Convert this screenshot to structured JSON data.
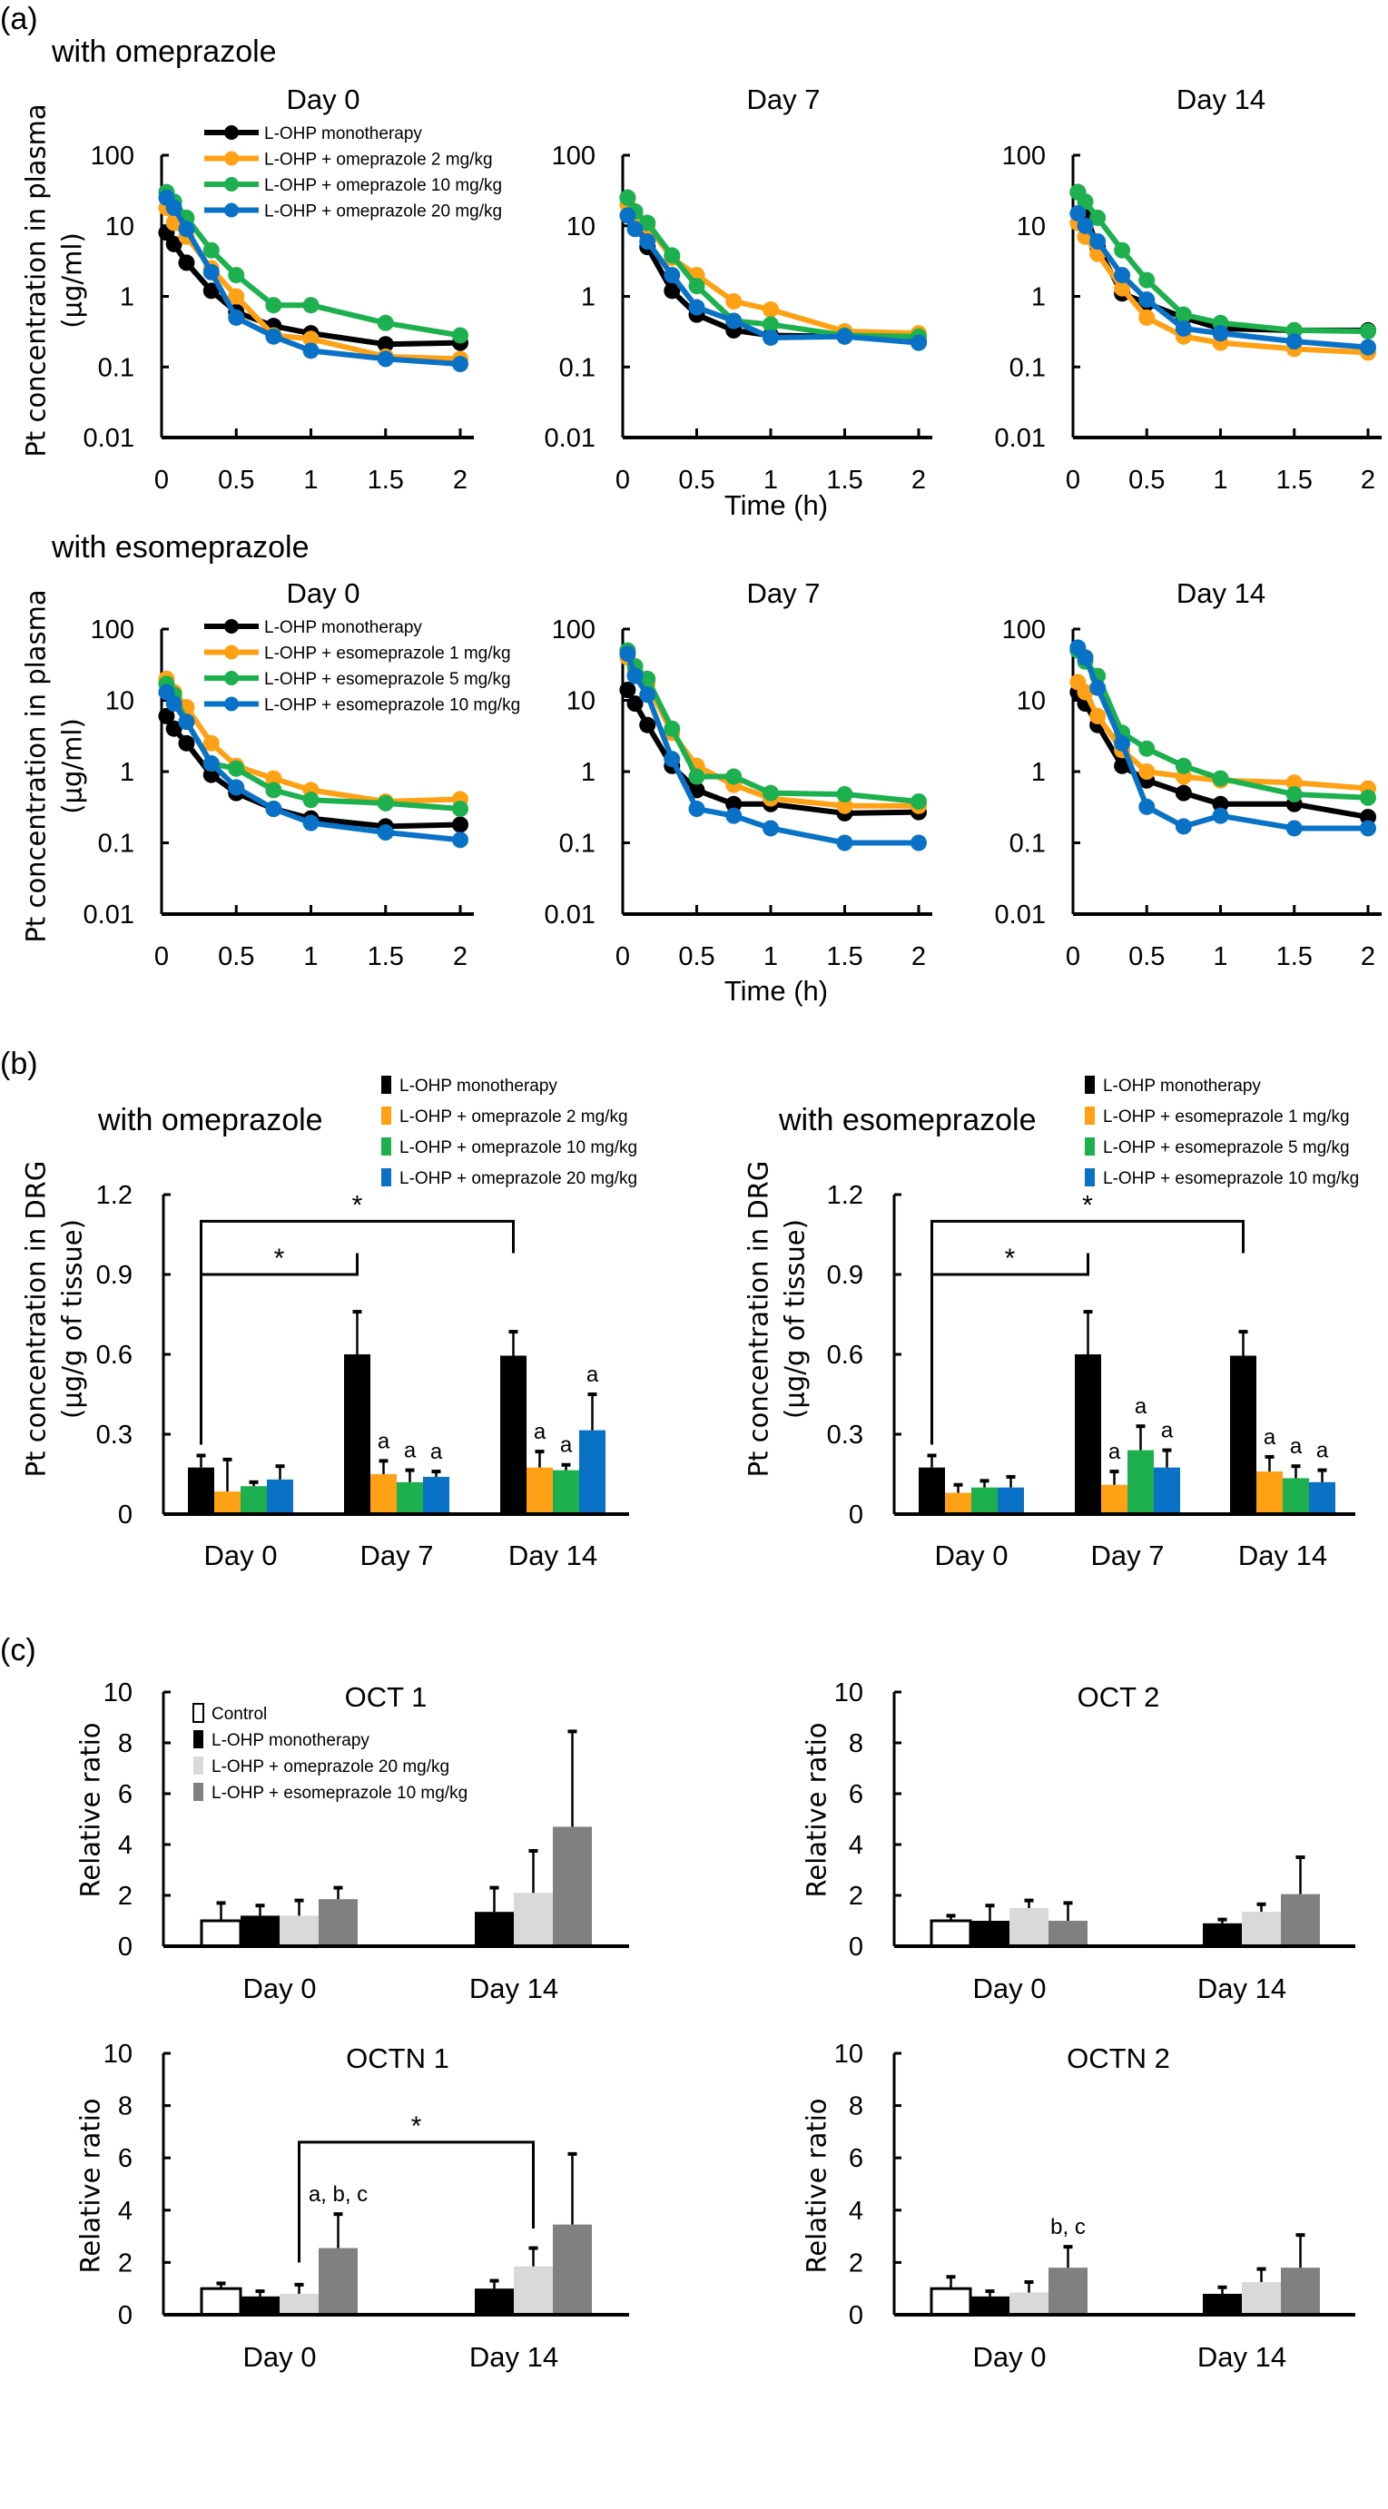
{
  "panel_labels": {
    "a": "(a)",
    "b": "(b)",
    "c": "(c)"
  },
  "sections": {
    "a_top": "with omeprazole",
    "a_bottom": "with esomeprazole",
    "b_left": "with omeprazole",
    "b_right": "with esomeprazole"
  },
  "chart_data": [
    {
      "type": "line",
      "title": "Day 0",
      "yscale": "log",
      "ylim": [
        0.01,
        100
      ],
      "xlim": [
        0,
        2
      ],
      "yticks": [
        "0.01",
        "0.1",
        "1",
        "10",
        "100"
      ],
      "xticks": [
        "0",
        "0.5",
        "1",
        "1.5",
        "2"
      ],
      "ylabel": [
        "Pt concentration in plasma",
        "(μg/ml)"
      ],
      "xlabel": "",
      "legend": "top-right",
      "grid": false,
      "x": [
        0.033,
        0.083,
        0.167,
        0.333,
        0.5,
        0.75,
        1,
        1.5,
        2
      ],
      "series": [
        {
          "name": "L-OHP monotherapy",
          "color": "#000000",
          "values": [
            8,
            5.5,
            3,
            1.2,
            0.6,
            0.38,
            0.3,
            0.21,
            0.22
          ]
        },
        {
          "name": "L-OHP + omeprazole 2 mg/kg",
          "color": "#FFA114",
          "values": [
            18,
            11,
            7,
            2.5,
            1.0,
            0.28,
            0.25,
            0.14,
            0.13
          ]
        },
        {
          "name": "L-OHP + omeprazole 10 mg/kg",
          "color": "#1DB04E",
          "values": [
            30,
            22,
            13,
            4.5,
            2.0,
            0.75,
            0.75,
            0.42,
            0.28
          ]
        },
        {
          "name": "L-OHP + omeprazole 20 mg/kg",
          "color": "#0A72C6",
          "values": [
            25,
            18,
            9,
            2.2,
            0.5,
            0.27,
            0.17,
            0.13,
            0.11
          ]
        }
      ]
    },
    {
      "type": "line",
      "title": "Day 7",
      "yscale": "log",
      "ylim": [
        0.01,
        100
      ],
      "xlim": [
        0,
        2
      ],
      "yticks": [
        "0.01",
        "0.1",
        "1",
        "10",
        "100"
      ],
      "xticks": [
        "0",
        "0.5",
        "1",
        "1.5",
        "2"
      ],
      "xlabel": "Time (h)",
      "grid": false,
      "x": [
        0.033,
        0.083,
        0.167,
        0.333,
        0.5,
        0.75,
        1,
        1.5,
        2
      ],
      "series": [
        {
          "color": "#000000",
          "values": [
            25,
            12,
            5,
            1.2,
            0.55,
            0.33,
            0.28,
            0.27,
            0.23
          ]
        },
        {
          "color": "#FFA114",
          "values": [
            20,
            14,
            10,
            3.5,
            2.0,
            0.85,
            0.65,
            0.32,
            0.3
          ]
        },
        {
          "color": "#1DB04E",
          "values": [
            25,
            16,
            11,
            3.8,
            1.4,
            0.45,
            0.4,
            0.28,
            0.27
          ]
        },
        {
          "color": "#0A72C6",
          "values": [
            14,
            9,
            6,
            2.0,
            0.7,
            0.45,
            0.26,
            0.27,
            0.22
          ]
        }
      ]
    },
    {
      "type": "line",
      "title": "Day 14",
      "yscale": "log",
      "ylim": [
        0.01,
        100
      ],
      "xlim": [
        0,
        2
      ],
      "yticks": [
        "0.01",
        "0.1",
        "1",
        "10",
        "100"
      ],
      "xticks": [
        "0",
        "0.5",
        "1",
        "1.5",
        "2"
      ],
      "grid": false,
      "x": [
        0.033,
        0.083,
        0.167,
        0.333,
        0.5,
        0.75,
        1,
        1.5,
        2
      ],
      "series": [
        {
          "color": "#000000",
          "values": [
            30,
            15,
            5,
            1.1,
            0.8,
            0.5,
            0.35,
            0.33,
            0.33
          ]
        },
        {
          "color": "#FFA114",
          "values": [
            11,
            7,
            4,
            1.3,
            0.5,
            0.27,
            0.22,
            0.18,
            0.16
          ]
        },
        {
          "color": "#1DB04E",
          "values": [
            30,
            22,
            13,
            4.5,
            1.7,
            0.55,
            0.42,
            0.33,
            0.32
          ]
        },
        {
          "color": "#0A72C6",
          "values": [
            15,
            10,
            6,
            2.0,
            0.9,
            0.35,
            0.3,
            0.23,
            0.19
          ]
        }
      ]
    },
    {
      "type": "line",
      "title": "Day 0",
      "yscale": "log",
      "ylim": [
        0.01,
        100
      ],
      "xlim": [
        0,
        2
      ],
      "yticks": [
        "0.01",
        "0.1",
        "1",
        "10",
        "100"
      ],
      "xticks": [
        "0",
        "0.5",
        "1",
        "1.5",
        "2"
      ],
      "ylabel": [
        "Pt concentration in plasma",
        "(μg/ml)"
      ],
      "legend": "top-right",
      "grid": false,
      "x": [
        0.033,
        0.083,
        0.167,
        0.333,
        0.5,
        0.75,
        1,
        1.5,
        2
      ],
      "series": [
        {
          "name": "L-OHP monotherapy",
          "color": "#000000",
          "values": [
            6,
            4,
            2.5,
            0.9,
            0.5,
            0.3,
            0.22,
            0.17,
            0.18
          ]
        },
        {
          "name": "L-OHP + esomeprazole 1 mg/kg",
          "color": "#FFA114",
          "values": [
            20,
            13,
            8,
            2.5,
            1.2,
            0.8,
            0.55,
            0.38,
            0.41
          ]
        },
        {
          "name": "L-OHP + esomeprazole 5 mg/kg",
          "color": "#1DB04E",
          "values": [
            17,
            12,
            5,
            1.3,
            1.1,
            0.55,
            0.4,
            0.36,
            0.3
          ]
        },
        {
          "name": "L-OHP + esomeprazole 10 mg/kg",
          "color": "#0A72C6",
          "values": [
            13,
            9,
            5,
            1.3,
            0.6,
            0.3,
            0.19,
            0.14,
            0.11
          ]
        }
      ]
    },
    {
      "type": "line",
      "title": "Day 7",
      "yscale": "log",
      "ylim": [
        0.01,
        100
      ],
      "xlim": [
        0,
        2
      ],
      "yticks": [
        "0.01",
        "0.1",
        "1",
        "10",
        "100"
      ],
      "xticks": [
        "0",
        "0.5",
        "1",
        "1.5",
        "2"
      ],
      "xlabel": "Time (h)",
      "grid": false,
      "x": [
        0.033,
        0.083,
        0.167,
        0.333,
        0.5,
        0.75,
        1,
        1.5,
        2
      ],
      "series": [
        {
          "color": "#000000",
          "values": [
            14,
            9,
            4.5,
            1.2,
            0.55,
            0.35,
            0.35,
            0.26,
            0.27
          ]
        },
        {
          "color": "#FFA114",
          "values": [
            40,
            25,
            17,
            3.5,
            1.2,
            0.65,
            0.42,
            0.33,
            0.33
          ]
        },
        {
          "color": "#1DB04E",
          "values": [
            50,
            30,
            20,
            4,
            0.85,
            0.85,
            0.5,
            0.48,
            0.38
          ]
        },
        {
          "color": "#0A72C6",
          "values": [
            45,
            22,
            12,
            1.5,
            0.3,
            0.24,
            0.16,
            0.1,
            0.1
          ]
        }
      ]
    },
    {
      "type": "line",
      "title": "Day 14",
      "yscale": "log",
      "ylim": [
        0.01,
        100
      ],
      "xlim": [
        0,
        2
      ],
      "yticks": [
        "0.01",
        "0.1",
        "1",
        "10",
        "100"
      ],
      "xticks": [
        "0",
        "0.5",
        "1",
        "1.5",
        "2"
      ],
      "grid": false,
      "x": [
        0.033,
        0.083,
        0.167,
        0.333,
        0.5,
        0.75,
        1,
        1.5,
        2
      ],
      "series": [
        {
          "color": "#000000",
          "values": [
            13,
            9,
            4.5,
            1.2,
            0.75,
            0.5,
            0.35,
            0.35,
            0.23
          ]
        },
        {
          "color": "#FFA114",
          "values": [
            18,
            13,
            6,
            2,
            1.0,
            0.85,
            0.75,
            0.7,
            0.58
          ]
        },
        {
          "color": "#1DB04E",
          "values": [
            50,
            35,
            22,
            3.5,
            2.1,
            1.2,
            0.8,
            0.48,
            0.43
          ]
        },
        {
          "color": "#0A72C6",
          "values": [
            55,
            40,
            15,
            2.5,
            0.32,
            0.17,
            0.24,
            0.16,
            0.16
          ]
        }
      ]
    },
    {
      "type": "bar",
      "ylim": [
        0,
        1.2
      ],
      "yticks": [
        "0",
        "0.3",
        "0.6",
        "0.9",
        "1.2"
      ],
      "ylabel": [
        "Pt concentration in DRG",
        "(μg/g of tissue)"
      ],
      "legend": "top-right",
      "grid": false,
      "categories": [
        "Day 0",
        "Day 7",
        "Day 14"
      ],
      "series": [
        {
          "name": "L-OHP monotherapy",
          "color": "#000000",
          "values": [
            0.175,
            0.6,
            0.595
          ],
          "errors": [
            0.045,
            0.16,
            0.09
          ],
          "annotations": [
            "",
            "",
            ""
          ]
        },
        {
          "name": "L-OHP + omeprazole 2 mg/kg",
          "color": "#FFA114",
          "values": [
            0.085,
            0.15,
            0.175
          ],
          "errors": [
            0.12,
            0.05,
            0.06
          ],
          "annotations": [
            "",
            "a",
            "a"
          ]
        },
        {
          "name": "L-OHP + omeprazole 10 mg/kg",
          "color": "#1DB04E",
          "values": [
            0.105,
            0.12,
            0.165
          ],
          "errors": [
            0.015,
            0.045,
            0.02
          ],
          "annotations": [
            "",
            "a",
            "a"
          ]
        },
        {
          "name": "L-OHP + omeprazole 20 mg/kg",
          "color": "#0A72C6",
          "values": [
            0.13,
            0.14,
            0.315
          ],
          "errors": [
            0.05,
            0.02,
            0.135
          ],
          "annotations": [
            "",
            "a",
            "a"
          ]
        }
      ],
      "significance": [
        {
          "from": "Day 0",
          "to": "Day 7",
          "label": "*"
        },
        {
          "from": "Day 0",
          "to": "Day 14",
          "label": "*"
        }
      ]
    },
    {
      "type": "bar",
      "ylim": [
        0,
        1.2
      ],
      "yticks": [
        "0",
        "0.3",
        "0.6",
        "0.9",
        "1.2"
      ],
      "ylabel": [
        "Pt concentration in DRG",
        "(μg/g of tissue)"
      ],
      "legend": "top-right",
      "grid": false,
      "categories": [
        "Day 0",
        "Day 7",
        "Day 14"
      ],
      "series": [
        {
          "name": "L-OHP monotherapy",
          "color": "#000000",
          "values": [
            0.175,
            0.6,
            0.595
          ],
          "errors": [
            0.045,
            0.16,
            0.09
          ],
          "annotations": [
            "",
            "",
            ""
          ]
        },
        {
          "name": "L-OHP + esomeprazole 1 mg/kg",
          "color": "#FFA114",
          "values": [
            0.08,
            0.11,
            0.16
          ],
          "errors": [
            0.03,
            0.05,
            0.055
          ],
          "annotations": [
            "",
            "a",
            "a"
          ]
        },
        {
          "name": "L-OHP + esomeprazole 5 mg/kg",
          "color": "#1DB04E",
          "values": [
            0.1,
            0.24,
            0.135
          ],
          "errors": [
            0.025,
            0.09,
            0.045
          ],
          "annotations": [
            "",
            "a",
            "a"
          ]
        },
        {
          "name": "L-OHP + esomeprazole 10 mg/kg",
          "color": "#0A72C6",
          "values": [
            0.1,
            0.175,
            0.12
          ],
          "errors": [
            0.04,
            0.065,
            0.045
          ],
          "annotations": [
            "",
            "a",
            "a"
          ]
        }
      ],
      "significance": [
        {
          "from": "Day 0",
          "to": "Day 7",
          "label": "*"
        },
        {
          "from": "Day 0",
          "to": "Day 14",
          "label": "*"
        }
      ]
    },
    {
      "type": "bar",
      "title": "OCT 1",
      "ylim": [
        0,
        10
      ],
      "yticks": [
        "0",
        "2",
        "4",
        "6",
        "8",
        "10"
      ],
      "ylabel": [
        "Relative ratio"
      ],
      "legend": "top-left",
      "grid": false,
      "categories": [
        "Day 0",
        "Day 14"
      ],
      "series": [
        {
          "name": "Control",
          "color": "#FFFFFF",
          "values": [
            1.0,
            null
          ],
          "errors": [
            0.7,
            null
          ]
        },
        {
          "name": "L-OHP monotherapy",
          "color": "#000000",
          "values": [
            1.2,
            1.35
          ],
          "errors": [
            0.4,
            0.95
          ]
        },
        {
          "name": "L-OHP + omeprazole 20 mg/kg",
          "color": "#D9D9D9",
          "values": [
            1.2,
            2.1
          ],
          "errors": [
            0.6,
            1.65
          ]
        },
        {
          "name": "L-OHP + esomeprazole 10 mg/kg",
          "color": "#808080",
          "values": [
            1.85,
            4.7
          ],
          "errors": [
            0.45,
            3.75
          ]
        }
      ]
    },
    {
      "type": "bar",
      "title": "OCT 2",
      "ylim": [
        0,
        10
      ],
      "yticks": [
        "0",
        "2",
        "4",
        "6",
        "8",
        "10"
      ],
      "ylabel": [
        "Relative ratio"
      ],
      "grid": false,
      "categories": [
        "Day 0",
        "Day 14"
      ],
      "series": [
        {
          "color": "#FFFFFF",
          "values": [
            1.0,
            null
          ],
          "errors": [
            0.2,
            null
          ]
        },
        {
          "color": "#000000",
          "values": [
            1.0,
            0.9
          ],
          "errors": [
            0.6,
            0.15
          ]
        },
        {
          "color": "#D9D9D9",
          "values": [
            1.5,
            1.35
          ],
          "errors": [
            0.3,
            0.3
          ]
        },
        {
          "color": "#808080",
          "values": [
            1.0,
            2.05
          ],
          "errors": [
            0.7,
            1.45
          ]
        }
      ]
    },
    {
      "type": "bar",
      "title": "OCTN 1",
      "ylim": [
        0,
        10
      ],
      "yticks": [
        "0",
        "2",
        "4",
        "6",
        "8",
        "10"
      ],
      "ylabel": [
        "Relative ratio"
      ],
      "grid": false,
      "categories": [
        "Day 0",
        "Day 14"
      ],
      "series": [
        {
          "color": "#FFFFFF",
          "values": [
            1.0,
            null
          ],
          "errors": [
            0.2,
            null
          ]
        },
        {
          "color": "#000000",
          "values": [
            0.7,
            1.0
          ],
          "errors": [
            0.2,
            0.3
          ]
        },
        {
          "color": "#D9D9D9",
          "values": [
            0.8,
            1.85
          ],
          "errors": [
            0.35,
            0.7
          ]
        },
        {
          "color": "#808080",
          "values": [
            2.55,
            3.45
          ],
          "errors": [
            1.3,
            2.7
          ],
          "annotations": [
            "a, b, c",
            ""
          ]
        }
      ],
      "significance": [
        {
          "from": "Day 0",
          "to": "Day 14",
          "label": "*"
        }
      ]
    },
    {
      "type": "bar",
      "title": "OCTN 2",
      "ylim": [
        0,
        10
      ],
      "yticks": [
        "0",
        "2",
        "4",
        "6",
        "8",
        "10"
      ],
      "ylabel": [
        "Relative ratio"
      ],
      "grid": false,
      "categories": [
        "Day 0",
        "Day 14"
      ],
      "series": [
        {
          "color": "#FFFFFF",
          "values": [
            1.0,
            null
          ],
          "errors": [
            0.45,
            null
          ]
        },
        {
          "color": "#000000",
          "values": [
            0.7,
            0.8
          ],
          "errors": [
            0.2,
            0.25
          ]
        },
        {
          "color": "#D9D9D9",
          "values": [
            0.85,
            1.25
          ],
          "errors": [
            0.4,
            0.5
          ]
        },
        {
          "color": "#808080",
          "values": [
            1.8,
            1.8
          ],
          "errors": [
            0.8,
            1.25
          ],
          "annotations": [
            "b, c",
            ""
          ]
        }
      ]
    }
  ]
}
